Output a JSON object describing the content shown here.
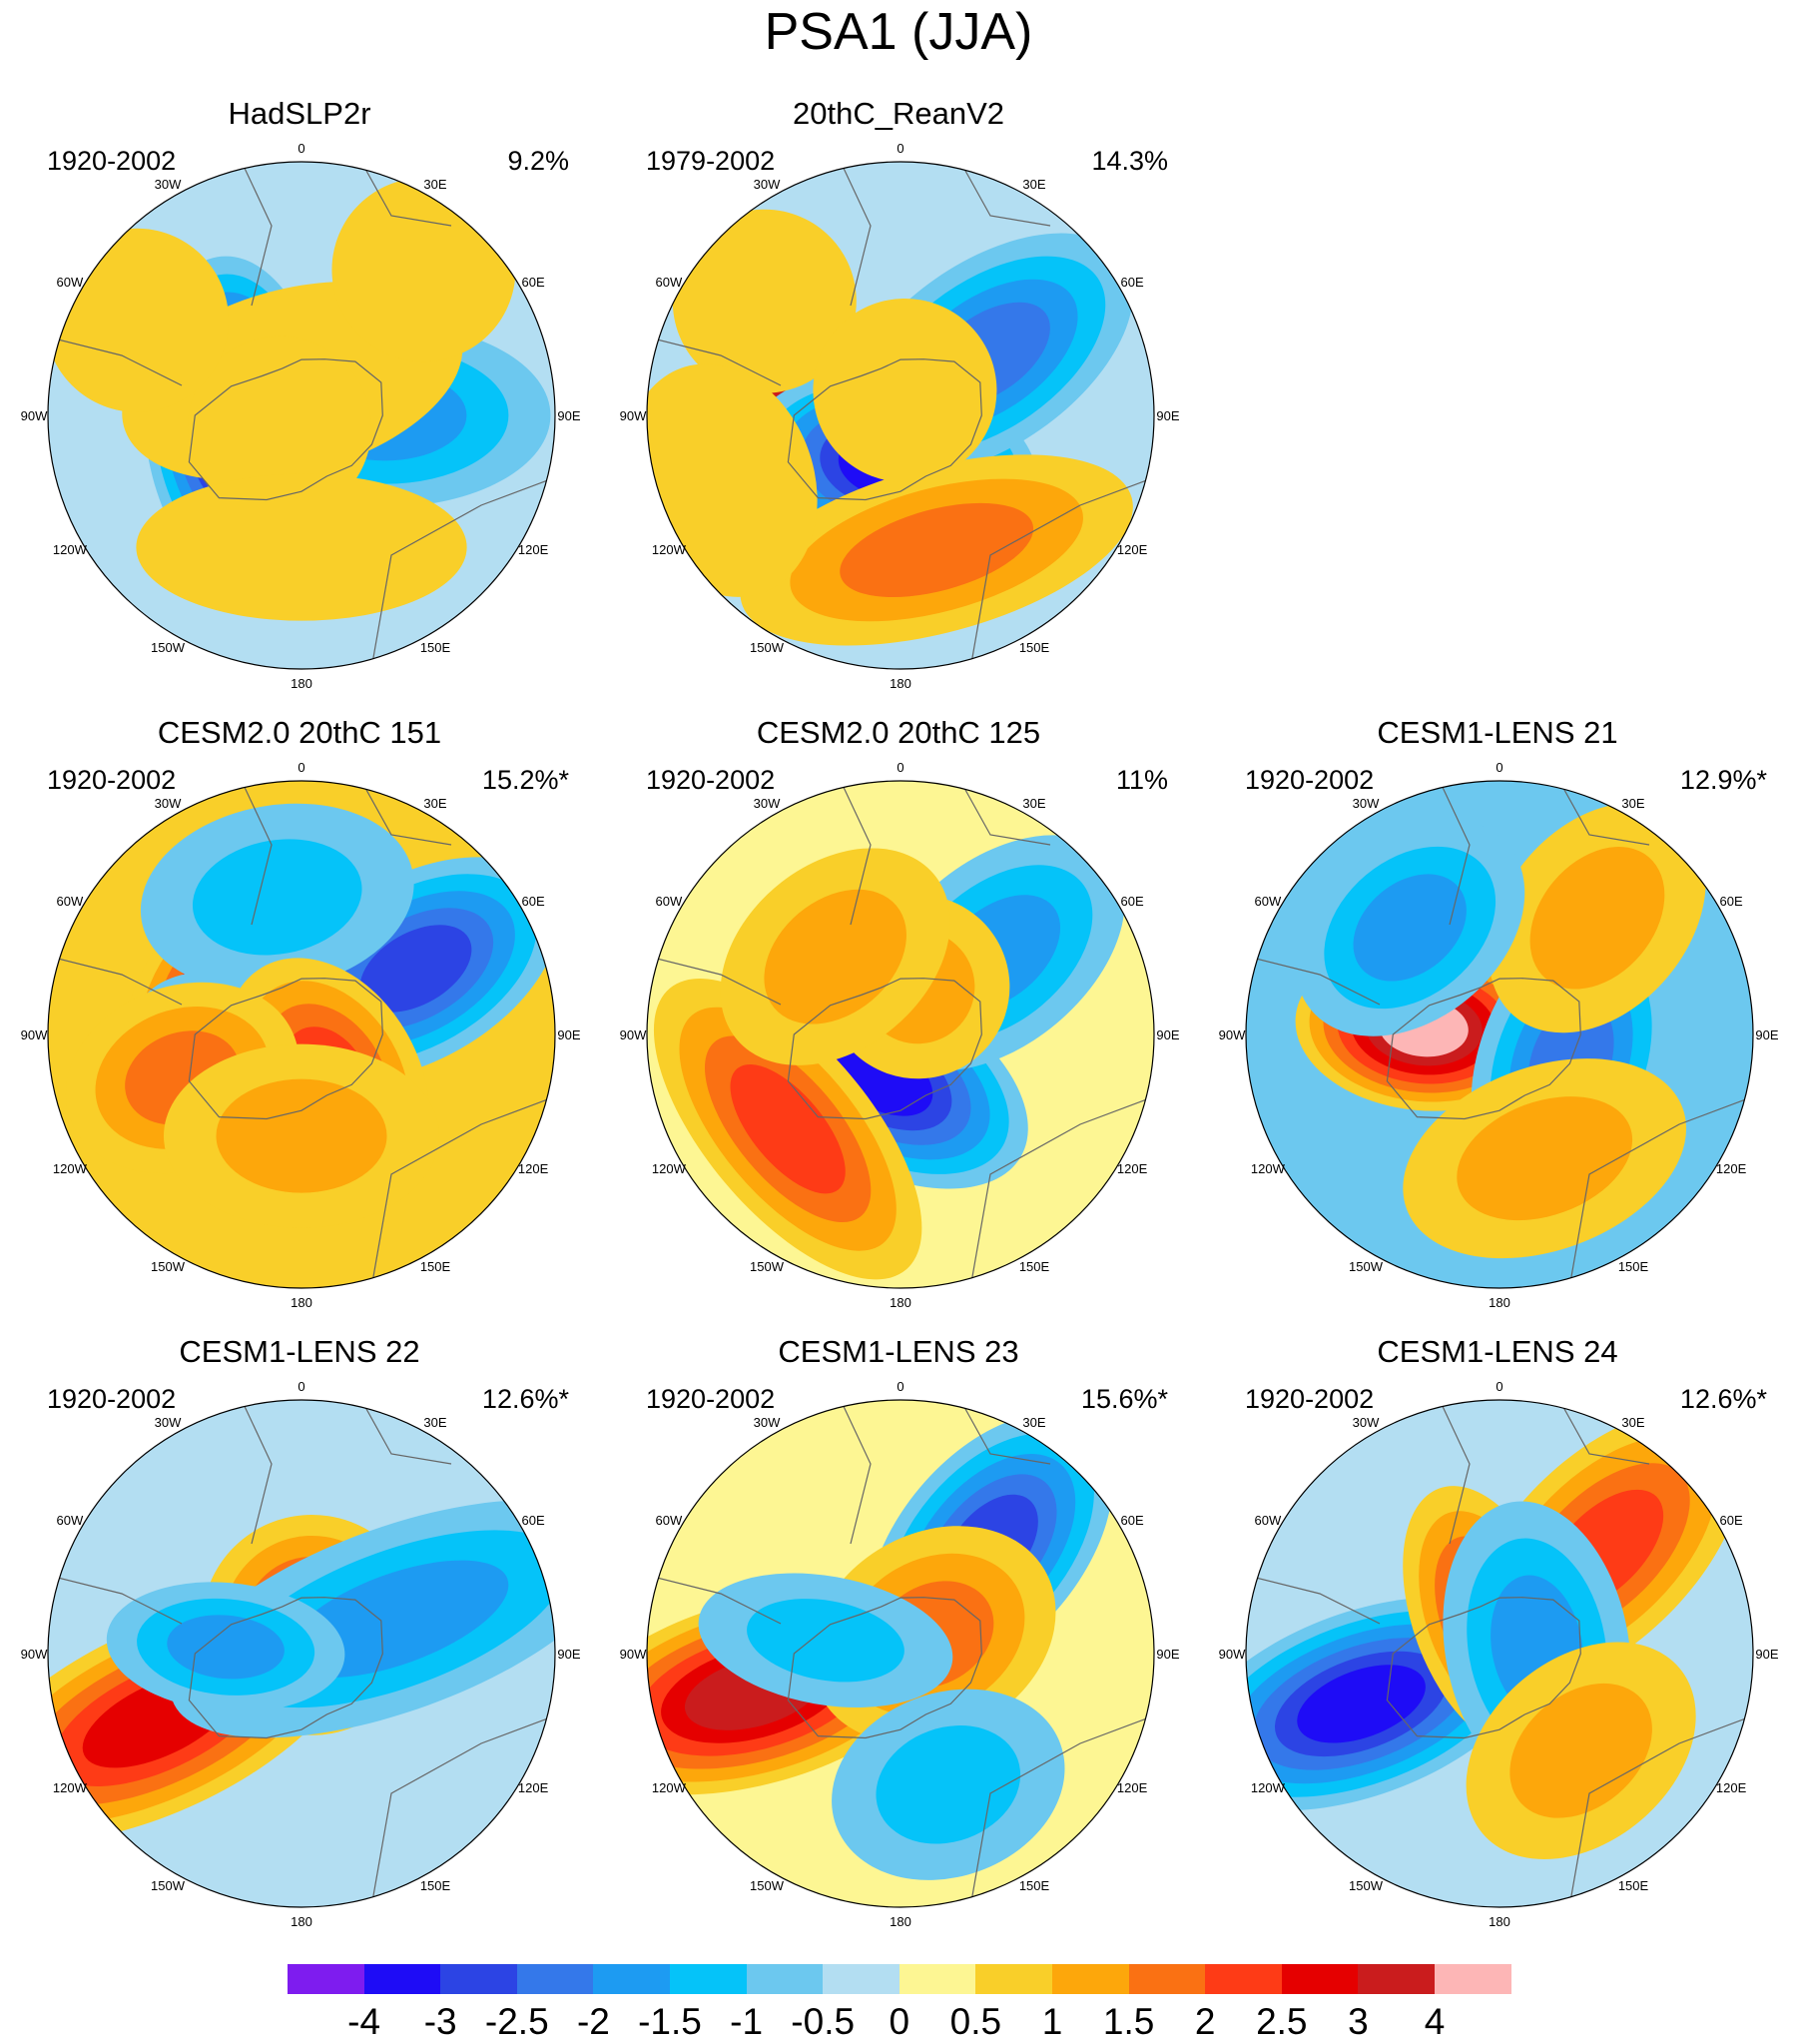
{
  "title": "PSA1 (JJA)",
  "lon_labels": [
    "0",
    "30E",
    "60E",
    "90E",
    "120E",
    "150E",
    "180",
    "150W",
    "120W",
    "90W",
    "60W",
    "30W"
  ],
  "panels": [
    {
      "id": "hadslp2r",
      "title": "HadSLP2r",
      "years": "1920-2002",
      "variance": "9.2%",
      "blobs": [
        {
          "lon": -95,
          "r": 0.26,
          "v": -4,
          "sx": 1.8,
          "sy": 1.0
        },
        {
          "lon": 90,
          "r": 0.33,
          "v": -1.5,
          "sx": 1.0,
          "sy": 1.8
        },
        {
          "lon": -15,
          "r": 0.14,
          "v": 0.5,
          "sx": 1.9,
          "sy": 1.0
        },
        {
          "lon": -120,
          "r": 0.1,
          "v": 0.5,
          "sx": 1.0,
          "sy": 1.0
        },
        {
          "lon": 180,
          "r": 0.52,
          "v": 0.5,
          "sx": 1.8,
          "sy": 0.8
        },
        {
          "lon": 40,
          "r": 0.75,
          "v": 0.5,
          "sx": 1.0,
          "sy": 1.0
        },
        {
          "lon": -60,
          "r": 0.75,
          "v": 0.5,
          "sx": 1.0,
          "sy": 1.0
        }
      ],
      "bg": "#b3def2"
    },
    {
      "id": "20thc-reanv2",
      "title": "20thC_ReanV2",
      "years": "1979-2002",
      "variance": "14.3%",
      "blobs": [
        {
          "lon": -80,
          "r": 0.35,
          "v": 3,
          "sx": 1.0,
          "sy": 1.3
        },
        {
          "lon": -170,
          "r": 0.2,
          "v": -3,
          "sx": 1.6,
          "sy": 1.0
        },
        {
          "lon": 55,
          "r": 0.42,
          "v": -2,
          "sx": 1.0,
          "sy": 1.8
        },
        {
          "lon": 165,
          "r": 0.55,
          "v": 1.5,
          "sx": 2.2,
          "sy": 0.9
        },
        {
          "lon": -50,
          "r": 0.7,
          "v": 0.5,
          "sx": 1.0,
          "sy": 1.0
        },
        {
          "lon": 10,
          "r": 0.1,
          "v": 0.5,
          "sx": 1.0,
          "sy": 1.0
        },
        {
          "lon": -110,
          "r": 0.75,
          "v": 0.5,
          "sx": 1.3,
          "sy": 1.0
        }
      ],
      "bg": "#b3def2"
    },
    {
      "id": "cesm2-151",
      "title": "CESM2.0 20thC 151",
      "years": "1920-2002",
      "variance": "15.2%*",
      "blobs": [
        {
          "lon": -45,
          "r": 0.3,
          "v": 3,
          "sx": 1.6,
          "sy": 1.0
        },
        {
          "lon": -150,
          "r": 0.22,
          "v": -3,
          "sx": 1.7,
          "sy": 1.0
        },
        {
          "lon": 60,
          "r": 0.52,
          "v": -2.5,
          "sx": 1.0,
          "sy": 1.7
        },
        {
          "lon": -10,
          "r": 0.55,
          "v": -1,
          "sx": 1.5,
          "sy": 1.0
        },
        {
          "lon": 150,
          "r": 0.2,
          "v": 2,
          "sx": 1.0,
          "sy": 1.4
        },
        {
          "lon": -110,
          "r": 0.5,
          "v": 1.5,
          "sx": 1.0,
          "sy": 1.3
        },
        {
          "lon": 180,
          "r": 0.4,
          "v": 1,
          "sx": 1.5,
          "sy": 1.0
        }
      ],
      "bg": "#f9cf29"
    },
    {
      "id": "cesm2-125",
      "title": "CESM2.0 20thC 125",
      "years": "1920-2002",
      "variance": "11%",
      "blobs": [
        {
          "lon": -150,
          "r": 0.18,
          "v": -3,
          "sx": 1.8,
          "sy": 1.0
        },
        {
          "lon": -130,
          "r": 0.58,
          "v": 2,
          "sx": 2.0,
          "sy": 0.9
        },
        {
          "lon": 50,
          "r": 0.5,
          "v": -1.5,
          "sx": 1.0,
          "sy": 1.6
        },
        {
          "lon": 20,
          "r": 0.2,
          "v": 1,
          "sx": 1.0,
          "sy": 1.0
        },
        {
          "lon": -40,
          "r": 0.4,
          "v": 1,
          "sx": 1.4,
          "sy": 1.0
        }
      ],
      "bg": "#fdf693"
    },
    {
      "id": "cesm1-21",
      "title": "CESM1-LENS 21",
      "years": "1920-2002",
      "variance": "12.9%*",
      "blobs": [
        {
          "lon": -85,
          "r": 0.3,
          "v": 4,
          "sx": 0.9,
          "sy": 1.4
        },
        {
          "lon": 110,
          "r": 0.3,
          "v": -2,
          "sx": 1.6,
          "sy": 1.0
        },
        {
          "lon": 160,
          "r": 0.52,
          "v": 1,
          "sx": 1.6,
          "sy": 1.0
        },
        {
          "lon": 40,
          "r": 0.6,
          "v": 1,
          "sx": 1.0,
          "sy": 1.4
        },
        {
          "lon": -40,
          "r": 0.55,
          "v": -1.5,
          "sx": 1.4,
          "sy": 1.0
        }
      ],
      "bg": "#6cc8ef"
    },
    {
      "id": "cesm1-22",
      "title": "CESM1-LENS 22",
      "years": "1920-2002",
      "variance": "12.6%*",
      "blobs": [
        {
          "lon": -115,
          "r": 0.62,
          "v": 2.5,
          "sx": 1.0,
          "sy": 2.3
        },
        {
          "lon": 20,
          "r": 0.12,
          "v": 2,
          "sx": 1.2,
          "sy": 1.2
        },
        {
          "lon": 70,
          "r": 0.4,
          "v": -1.5,
          "sx": 1.0,
          "sy": 2.6
        },
        {
          "lon": -85,
          "r": 0.3,
          "v": -1.5,
          "sx": 0.7,
          "sy": 1.3
        }
      ],
      "bg": "#b3def2"
    },
    {
      "id": "cesm1-23",
      "title": "CESM1-LENS 23",
      "years": "1920-2002",
      "variance": "15.6%*",
      "blobs": [
        {
          "lon": -105,
          "r": 0.6,
          "v": 3,
          "sx": 1.0,
          "sy": 2.1
        },
        {
          "lon": 40,
          "r": 0.55,
          "v": -2.5,
          "sx": 1.0,
          "sy": 1.7
        },
        {
          "lon": 60,
          "r": 0.15,
          "v": 1.5,
          "sx": 1.1,
          "sy": 1.4
        },
        {
          "lon": -80,
          "r": 0.3,
          "v": -1,
          "sx": 0.7,
          "sy": 1.4
        },
        {
          "lon": 160,
          "r": 0.55,
          "v": -1,
          "sx": 1.3,
          "sy": 1.0
        }
      ],
      "bg": "#fdf693"
    },
    {
      "id": "cesm1-24",
      "title": "CESM1-LENS 24",
      "years": "1920-2002",
      "variance": "12.6%*",
      "blobs": [
        {
          "lon": -110,
          "r": 0.58,
          "v": -3,
          "sx": 1.0,
          "sy": 2.0
        },
        {
          "lon": 45,
          "r": 0.58,
          "v": 2,
          "sx": 1.0,
          "sy": 1.9
        },
        {
          "lon": -20,
          "r": 0.15,
          "v": 2,
          "sx": 0.8,
          "sy": 1.5
        },
        {
          "lon": 80,
          "r": 0.15,
          "v": -1.5,
          "sx": 1.6,
          "sy": 1.0
        },
        {
          "lon": 140,
          "r": 0.5,
          "v": 1,
          "sx": 1.4,
          "sy": 1.0
        }
      ],
      "bg": "#b3def2"
    }
  ],
  "colorbar": {
    "colors": [
      "#7e1cef",
      "#1e0cf6",
      "#2c44e4",
      "#3478ea",
      "#1d9bf2",
      "#05c3f9",
      "#6cc8ef",
      "#b3def2",
      "#fdf693",
      "#f9cf29",
      "#fda70b",
      "#fa7113",
      "#fe3b16",
      "#e50000",
      "#ca1c1d",
      "#fdb6b6"
    ],
    "labels": [
      "-4",
      "-3",
      "-2.5",
      "-2",
      "-1.5",
      "-1",
      "-0.5",
      "0",
      "0.5",
      "1",
      "1.5",
      "2",
      "2.5",
      "3",
      "4"
    ],
    "levels": [
      -4,
      -3,
      -2.5,
      -2,
      -1.5,
      -1,
      -0.5,
      0,
      0.5,
      1,
      1.5,
      2,
      2.5,
      3,
      4
    ]
  }
}
